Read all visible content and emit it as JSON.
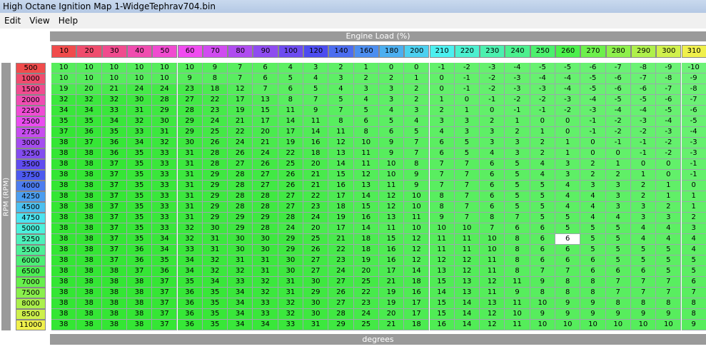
{
  "window_title": "High Octane Ignition Map 1-WidgeTephrav704.bin",
  "menu": [
    "Edit",
    "View",
    "Help"
  ],
  "x_axis_label": "Engine Load (%)",
  "y_axis_label": "RPM (RPM)",
  "units": "degrees",
  "columns": [
    10,
    20,
    30,
    40,
    50,
    60,
    70,
    80,
    90,
    100,
    120,
    140,
    160,
    180,
    200,
    210,
    220,
    230,
    240,
    250,
    260,
    270,
    280,
    290,
    300,
    310
  ],
  "rows": [
    500,
    1000,
    1500,
    2000,
    2250,
    2500,
    2750,
    3000,
    3250,
    3500,
    3750,
    4000,
    4250,
    4500,
    4750,
    5000,
    5250,
    5500,
    6000,
    6500,
    7000,
    7500,
    8000,
    8500,
    11000
  ],
  "table": [
    [
      10,
      10,
      10,
      10,
      10,
      10,
      9,
      7,
      6,
      4,
      3,
      2,
      1,
      0,
      0,
      -1,
      -2,
      -3,
      -4,
      -5,
      -5,
      -6,
      -7,
      -8,
      -9,
      -10
    ],
    [
      10,
      10,
      10,
      10,
      10,
      9,
      8,
      7,
      6,
      5,
      4,
      3,
      2,
      2,
      1,
      0,
      -1,
      -2,
      -3,
      -4,
      -4,
      -5,
      -6,
      -7,
      -8,
      -9
    ],
    [
      19,
      20,
      21,
      24,
      24,
      23,
      18,
      12,
      7,
      6,
      5,
      4,
      3,
      3,
      2,
      0,
      -1,
      -2,
      -3,
      -3,
      -4,
      -5,
      -6,
      -6,
      -7,
      -8
    ],
    [
      32,
      32,
      32,
      30,
      28,
      27,
      22,
      17,
      13,
      8,
      7,
      5,
      4,
      3,
      2,
      1,
      0,
      -1,
      -2,
      -2,
      -3,
      -4,
      -5,
      -5,
      -6,
      -7
    ],
    [
      34,
      34,
      33,
      31,
      29,
      28,
      23,
      19,
      15,
      11,
      9,
      7,
      5,
      4,
      3,
      2,
      1,
      0,
      -1,
      -1,
      -2,
      -3,
      -4,
      -4,
      -5,
      -6
    ],
    [
      35,
      35,
      34,
      32,
      30,
      29,
      24,
      21,
      17,
      14,
      11,
      8,
      6,
      5,
      4,
      3,
      3,
      2,
      1,
      0,
      0,
      -1,
      -2,
      -3,
      -4,
      -5
    ],
    [
      37,
      36,
      35,
      33,
      31,
      29,
      25,
      22,
      20,
      17,
      14,
      11,
      8,
      6,
      5,
      4,
      3,
      3,
      2,
      1,
      0,
      -1,
      -2,
      -2,
      -3,
      -4
    ],
    [
      38,
      37,
      36,
      34,
      32,
      30,
      26,
      24,
      21,
      19,
      16,
      12,
      10,
      9,
      7,
      6,
      5,
      3,
      3,
      2,
      1,
      0,
      -1,
      -1,
      -2,
      -3
    ],
    [
      38,
      38,
      36,
      35,
      33,
      31,
      28,
      26,
      24,
      22,
      18,
      13,
      11,
      9,
      7,
      6,
      5,
      4,
      3,
      2,
      1,
      0,
      0,
      -1,
      -2,
      -3
    ],
    [
      38,
      38,
      37,
      35,
      33,
      31,
      28,
      27,
      26,
      25,
      20,
      14,
      11,
      10,
      8,
      7,
      7,
      6,
      5,
      4,
      3,
      2,
      1,
      0,
      0,
      -1
    ],
    [
      38,
      38,
      37,
      35,
      33,
      31,
      29,
      28,
      27,
      26,
      21,
      15,
      12,
      10,
      9,
      7,
      7,
      6,
      5,
      4,
      3,
      2,
      2,
      1,
      0,
      -1
    ],
    [
      38,
      38,
      37,
      35,
      33,
      31,
      29,
      28,
      27,
      26,
      21,
      16,
      13,
      11,
      9,
      7,
      7,
      6,
      5,
      5,
      4,
      3,
      3,
      2,
      1,
      0
    ],
    [
      38,
      38,
      37,
      35,
      33,
      31,
      29,
      28,
      28,
      27,
      22,
      17,
      14,
      12,
      10,
      8,
      7,
      6,
      5,
      5,
      4,
      4,
      3,
      2,
      1,
      1
    ],
    [
      38,
      38,
      37,
      35,
      33,
      31,
      29,
      28,
      28,
      27,
      23,
      18,
      15,
      12,
      10,
      8,
      7,
      6,
      5,
      5,
      4,
      4,
      3,
      3,
      2,
      1
    ],
    [
      38,
      38,
      37,
      35,
      33,
      31,
      29,
      29,
      29,
      28,
      24,
      19,
      16,
      13,
      11,
      9,
      7,
      8,
      7,
      5,
      5,
      4,
      4,
      3,
      3,
      2
    ],
    [
      38,
      38,
      37,
      35,
      33,
      32,
      30,
      29,
      28,
      24,
      20,
      17,
      14,
      11,
      10,
      10,
      10,
      7,
      6,
      6,
      5,
      5,
      5,
      4,
      4,
      3
    ],
    [
      38,
      38,
      37,
      35,
      34,
      32,
      31,
      30,
      30,
      29,
      25,
      21,
      18,
      15,
      12,
      11,
      11,
      10,
      8,
      6,
      6,
      5,
      5,
      4,
      4,
      4
    ],
    [
      38,
      38,
      37,
      36,
      34,
      33,
      31,
      30,
      30,
      29,
      26,
      22,
      18,
      16,
      12,
      11,
      11,
      10,
      8,
      6,
      6,
      5,
      5,
      5,
      5,
      4
    ],
    [
      38,
      38,
      37,
      36,
      35,
      34,
      32,
      31,
      31,
      30,
      27,
      23,
      19,
      16,
      12,
      12,
      12,
      11,
      8,
      6,
      6,
      6,
      5,
      5,
      5,
      5
    ],
    [
      38,
      38,
      38,
      37,
      36,
      34,
      32,
      32,
      31,
      30,
      27,
      24,
      20,
      17,
      14,
      13,
      12,
      11,
      8,
      7,
      7,
      6,
      6,
      6,
      5,
      5
    ],
    [
      38,
      38,
      38,
      38,
      37,
      35,
      34,
      33,
      32,
      31,
      30,
      27,
      25,
      21,
      18,
      15,
      13,
      12,
      11,
      9,
      8,
      8,
      7,
      7,
      7,
      6
    ],
    [
      38,
      38,
      38,
      38,
      37,
      36,
      35,
      34,
      32,
      31,
      29,
      26,
      22,
      19,
      16,
      14,
      13,
      11,
      9,
      8,
      8,
      8,
      7,
      7,
      7,
      7
    ],
    [
      38,
      38,
      38,
      38,
      37,
      36,
      35,
      34,
      33,
      32,
      30,
      27,
      23,
      19,
      17,
      15,
      14,
      13,
      11,
      10,
      9,
      9,
      8,
      8,
      8,
      8
    ],
    [
      38,
      38,
      38,
      38,
      37,
      36,
      35,
      34,
      33,
      32,
      30,
      28,
      24,
      20,
      17,
      15,
      14,
      12,
      10,
      9,
      9,
      9,
      9,
      9,
      9,
      8
    ],
    [
      38,
      38,
      38,
      38,
      37,
      36,
      35,
      34,
      34,
      33,
      31,
      29,
      25,
      21,
      18,
      16,
      14,
      12,
      11,
      10,
      10,
      10,
      10,
      10,
      10,
      9
    ]
  ]
}
